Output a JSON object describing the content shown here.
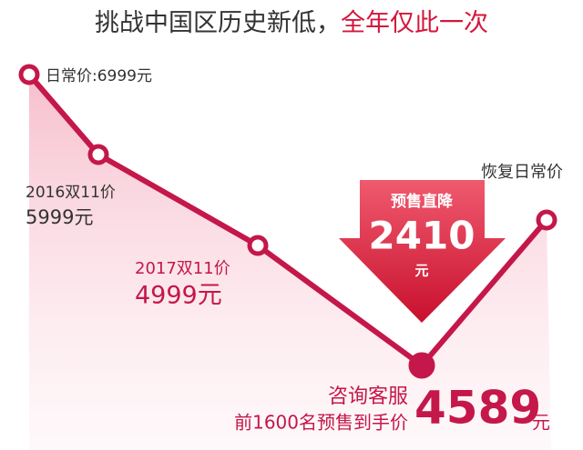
{
  "title": {
    "main": "挑战中国区历史新低，",
    "highlight": "全年仅此一次"
  },
  "points": [
    {
      "label": "日常价:6999元"
    },
    {
      "label": "2016双11价",
      "price": "5999元"
    },
    {
      "label": "2017双11价",
      "price": "4999元"
    },
    {
      "label": "咨询客服",
      "sub": "前1600名预售到手价",
      "price": "4589",
      "unit": "元"
    },
    {
      "label": "恢复日常价"
    }
  ],
  "badge": {
    "title": "预售直降",
    "amount": "2410",
    "unit": "元"
  }
}
